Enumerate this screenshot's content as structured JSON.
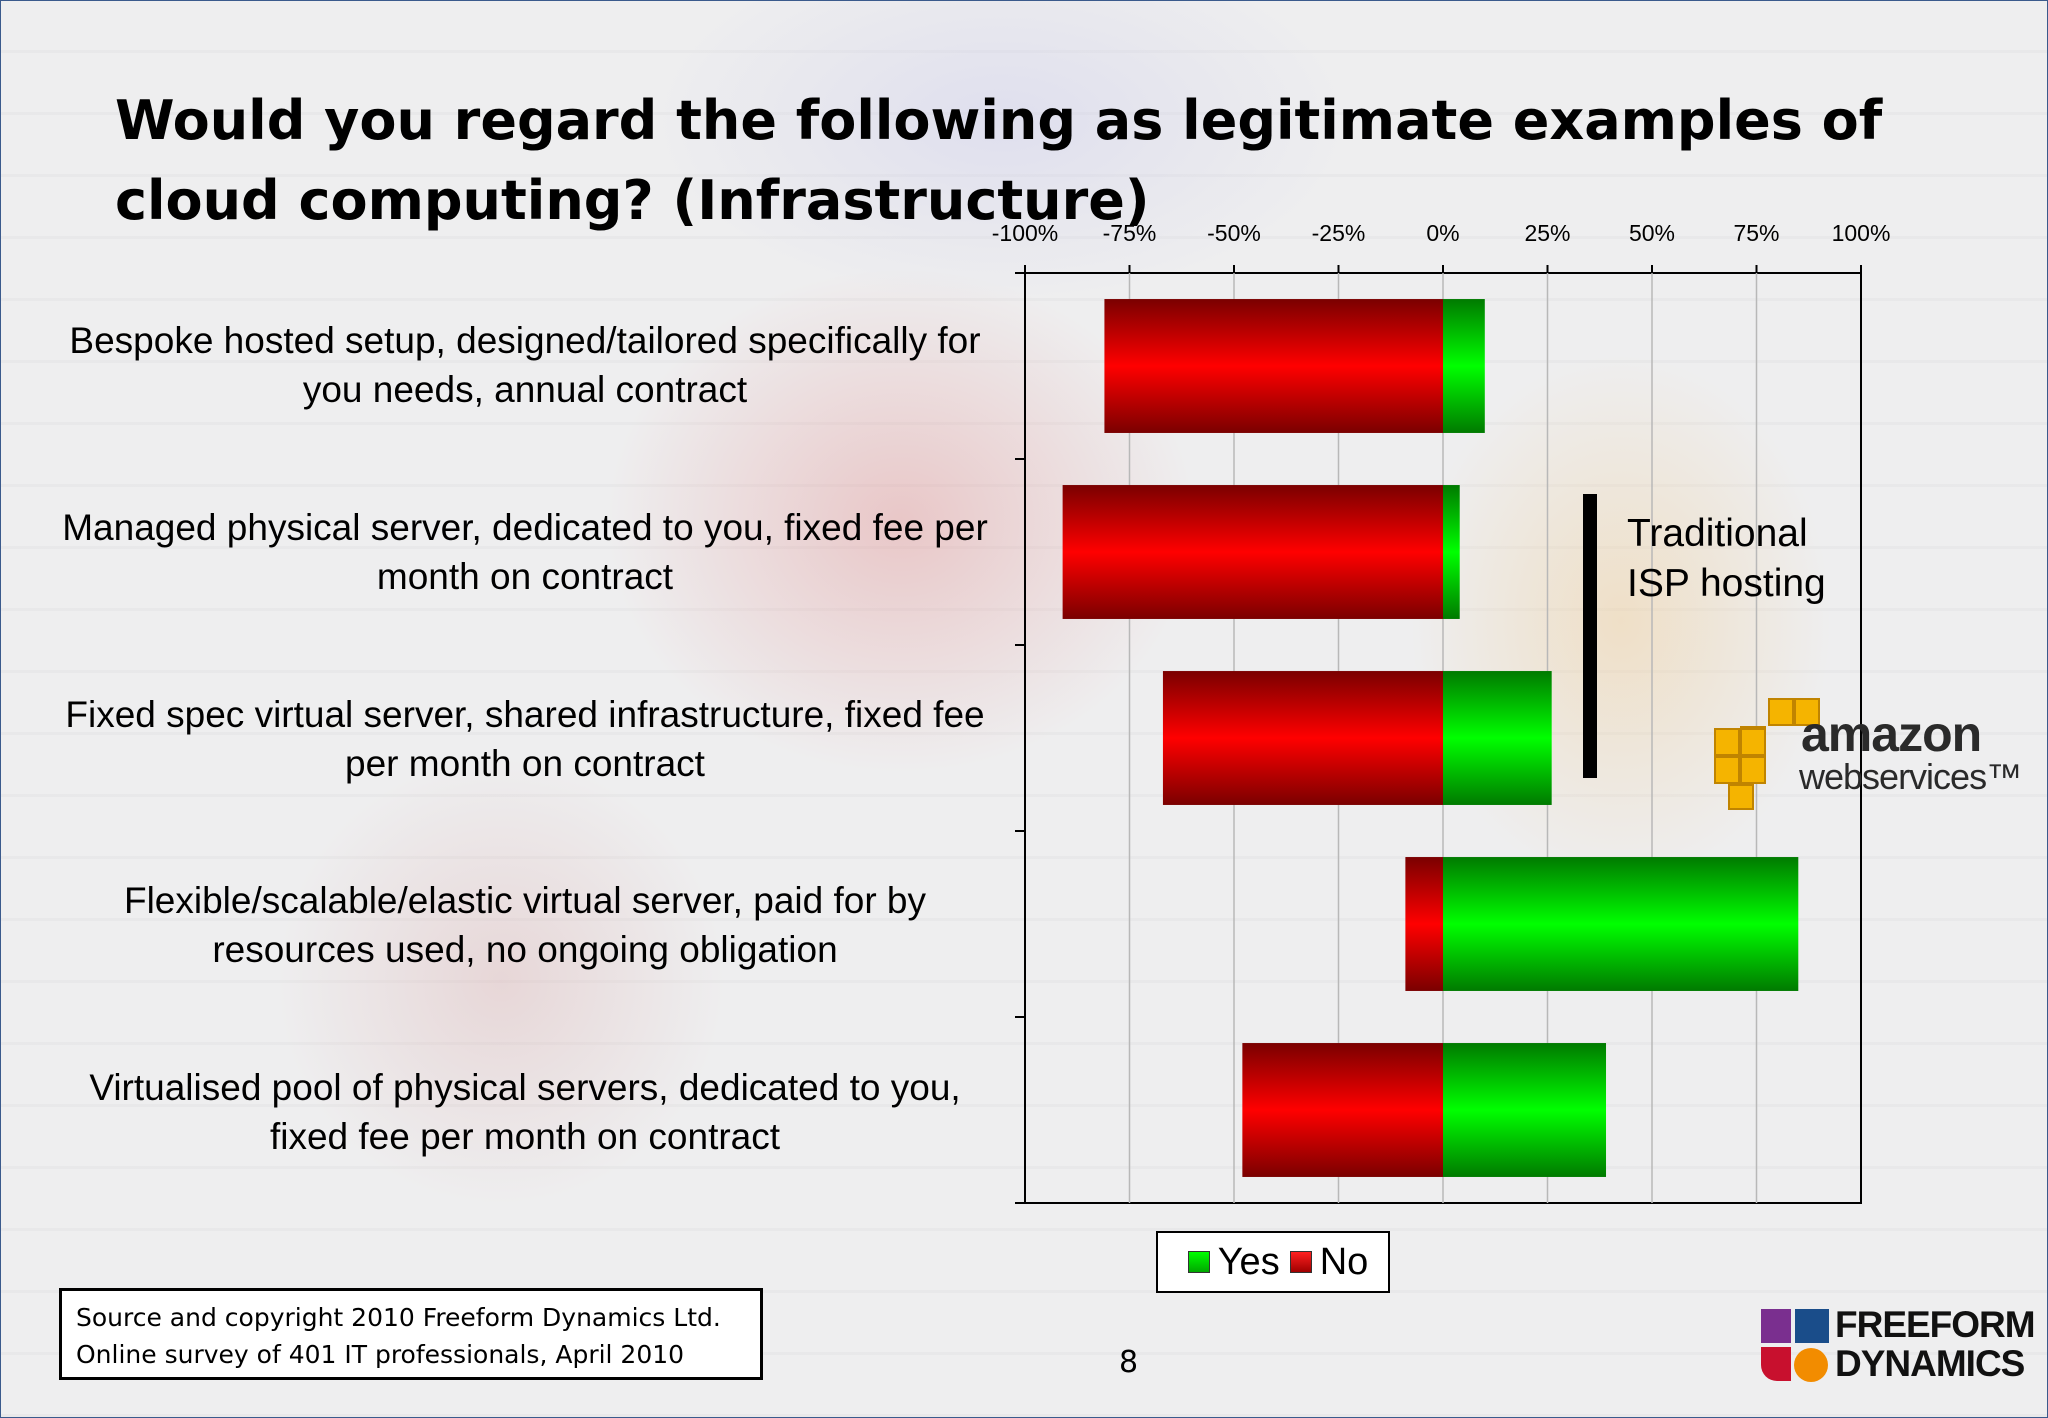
{
  "slide": {
    "title": "Would you regard the following as legitimate examples of cloud computing? (Infrastructure)",
    "annotation": "Traditional ISP hosting",
    "source": {
      "line1": "Source and copyright 2010 Freeform Dynamics Ltd.",
      "line2": "Online survey of 401 IT professionals, April 2010"
    },
    "page_number": "8",
    "aws_logo": {
      "line1": "amazon",
      "line2": "webservices™"
    },
    "freeform_logo": {
      "line1": "FREEFORM",
      "line2": "DYNAMICS"
    }
  },
  "colors": {
    "yes": "#00cc00",
    "no": "#e00000",
    "annotation_bar": "#000000"
  },
  "chart_data": {
    "type": "bar",
    "orientation": "horizontal",
    "stacked": "diverging",
    "categories": [
      "Bespoke hosted setup, designed/tailored specifically for you needs, annual contract",
      "Managed physical server, dedicated to you, fixed fee per month on contract",
      "Fixed spec virtual server, shared infrastructure, fixed fee per month on contract",
      "Flexible/scalable/elastic virtual server, paid for by resources used, no ongoing obligation",
      "Virtualised pool of physical servers, dedicated to you, fixed fee per month on contract"
    ],
    "series": [
      {
        "name": "Yes",
        "values": [
          10,
          4,
          26,
          85,
          39
        ]
      },
      {
        "name": "No",
        "values": [
          -81,
          -91,
          -67,
          -9,
          -48
        ]
      }
    ],
    "xlim": [
      -100,
      100
    ],
    "xticks": [
      "-100%",
      "-75%",
      "-50%",
      "-25%",
      "0%",
      "25%",
      "50%",
      "75%",
      "100%"
    ],
    "grid": true,
    "legend_position": "bottom"
  }
}
